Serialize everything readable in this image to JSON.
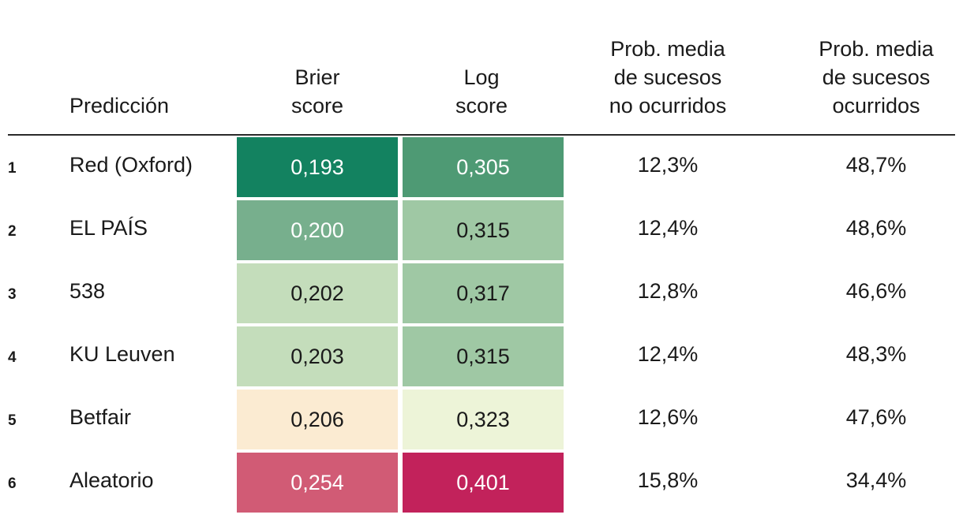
{
  "headers": {
    "prediction": [
      "Predicción"
    ],
    "brier": [
      "Brier",
      "score"
    ],
    "log": [
      "Log",
      "score"
    ],
    "prob_no": [
      "Prob. media",
      "de sucesos",
      "no ocurridos"
    ],
    "prob_yes": [
      "Prob. media",
      "de sucesos",
      "ocurridos"
    ]
  },
  "colors": {
    "dark_green": "#138260",
    "mid_green": "#4e9a74",
    "soft_green": "#77af8d",
    "pale_green": "#9fc8a4",
    "lighter_green": "#c4ddbb",
    "very_light_green": "#edf4d8",
    "cream": "#fbebd2",
    "rose": "#d15b75",
    "crimson": "#c2225b"
  },
  "chart_data": {
    "type": "table",
    "columns": [
      "",
      "Predicción",
      "Brier score",
      "Log score",
      "Prob. media de sucesos no ocurridos",
      "Prob. media de sucesos ocurridos"
    ],
    "rows": [
      {
        "rank": "1",
        "name": "Red (Oxford)",
        "brier": "0,193",
        "log": "0,305",
        "prob_no": "12,3%",
        "prob_yes": "48,7%",
        "brier_color": "#138260",
        "log_color": "#4e9a74",
        "brier_light_text": true,
        "log_light_text": true
      },
      {
        "rank": "2",
        "name": "EL PAÍS",
        "brier": "0,200",
        "log": "0,315",
        "prob_no": "12,4%",
        "prob_yes": "48,6%",
        "brier_color": "#77af8d",
        "log_color": "#9fc8a4",
        "brier_light_text": true,
        "log_light_text": false
      },
      {
        "rank": "3",
        "name": "538",
        "brier": "0,202",
        "log": "0,317",
        "prob_no": "12,8%",
        "prob_yes": "46,6%",
        "brier_color": "#c4ddbb",
        "log_color": "#9fc8a4",
        "brier_light_text": false,
        "log_light_text": false
      },
      {
        "rank": "4",
        "name": "KU Leuven",
        "brier": "0,203",
        "log": "0,315",
        "prob_no": "12,4%",
        "prob_yes": "48,3%",
        "brier_color": "#c4ddbb",
        "log_color": "#9fc8a4",
        "brier_light_text": false,
        "log_light_text": false
      },
      {
        "rank": "5",
        "name": "Betfair",
        "brier": "0,206",
        "log": "0,323",
        "prob_no": "12,6%",
        "prob_yes": "47,6%",
        "brier_color": "#fbebd2",
        "log_color": "#edf4d8",
        "brier_light_text": false,
        "log_light_text": false
      },
      {
        "rank": "6",
        "name": "Aleatorio",
        "brier": "0,254",
        "log": "0,401",
        "prob_no": "15,8%",
        "prob_yes": "34,4%",
        "brier_color": "#d15b75",
        "log_color": "#c2225b",
        "brier_light_text": true,
        "log_light_text": true
      }
    ]
  }
}
